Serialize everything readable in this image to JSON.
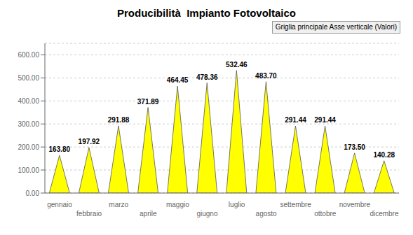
{
  "chart_data": {
    "type": "bar",
    "title": "Producibilità  Impianto Fotovoltaico",
    "categories": [
      "gennaio",
      "febbraio",
      "marzo",
      "aprile",
      "maggio",
      "giugno",
      "luglio",
      "agosto",
      "settembre",
      "ottobre",
      "novembre",
      "dicembre"
    ],
    "values": [
      163.8,
      197.92,
      291.88,
      371.89,
      464.45,
      478.36,
      532.46,
      483.7,
      291.44,
      291.44,
      173.5,
      140.28
    ],
    "value_labels": [
      "163.80",
      "197.92",
      "291.88",
      "371.89",
      "464.45",
      "478.36",
      "532.46",
      "483.70",
      "291.44",
      "291.44",
      "173.50",
      "140.28"
    ],
    "data_labels": true,
    "color": "#FFFF00",
    "ylim": [
      0,
      650
    ],
    "yticks": [
      {
        "value": 0,
        "label": "0.00"
      },
      {
        "value": 100,
        "label": "100.00"
      },
      {
        "value": 200,
        "label": "200.00"
      },
      {
        "value": 300,
        "label": "300.00"
      },
      {
        "value": 400,
        "label": "400.00"
      },
      {
        "value": 500,
        "label": "500.00"
      },
      {
        "value": 600,
        "label": "600.00"
      }
    ],
    "grid": true,
    "annotations": [
      "Griglia principale Asse verticale (Valori)"
    ]
  }
}
